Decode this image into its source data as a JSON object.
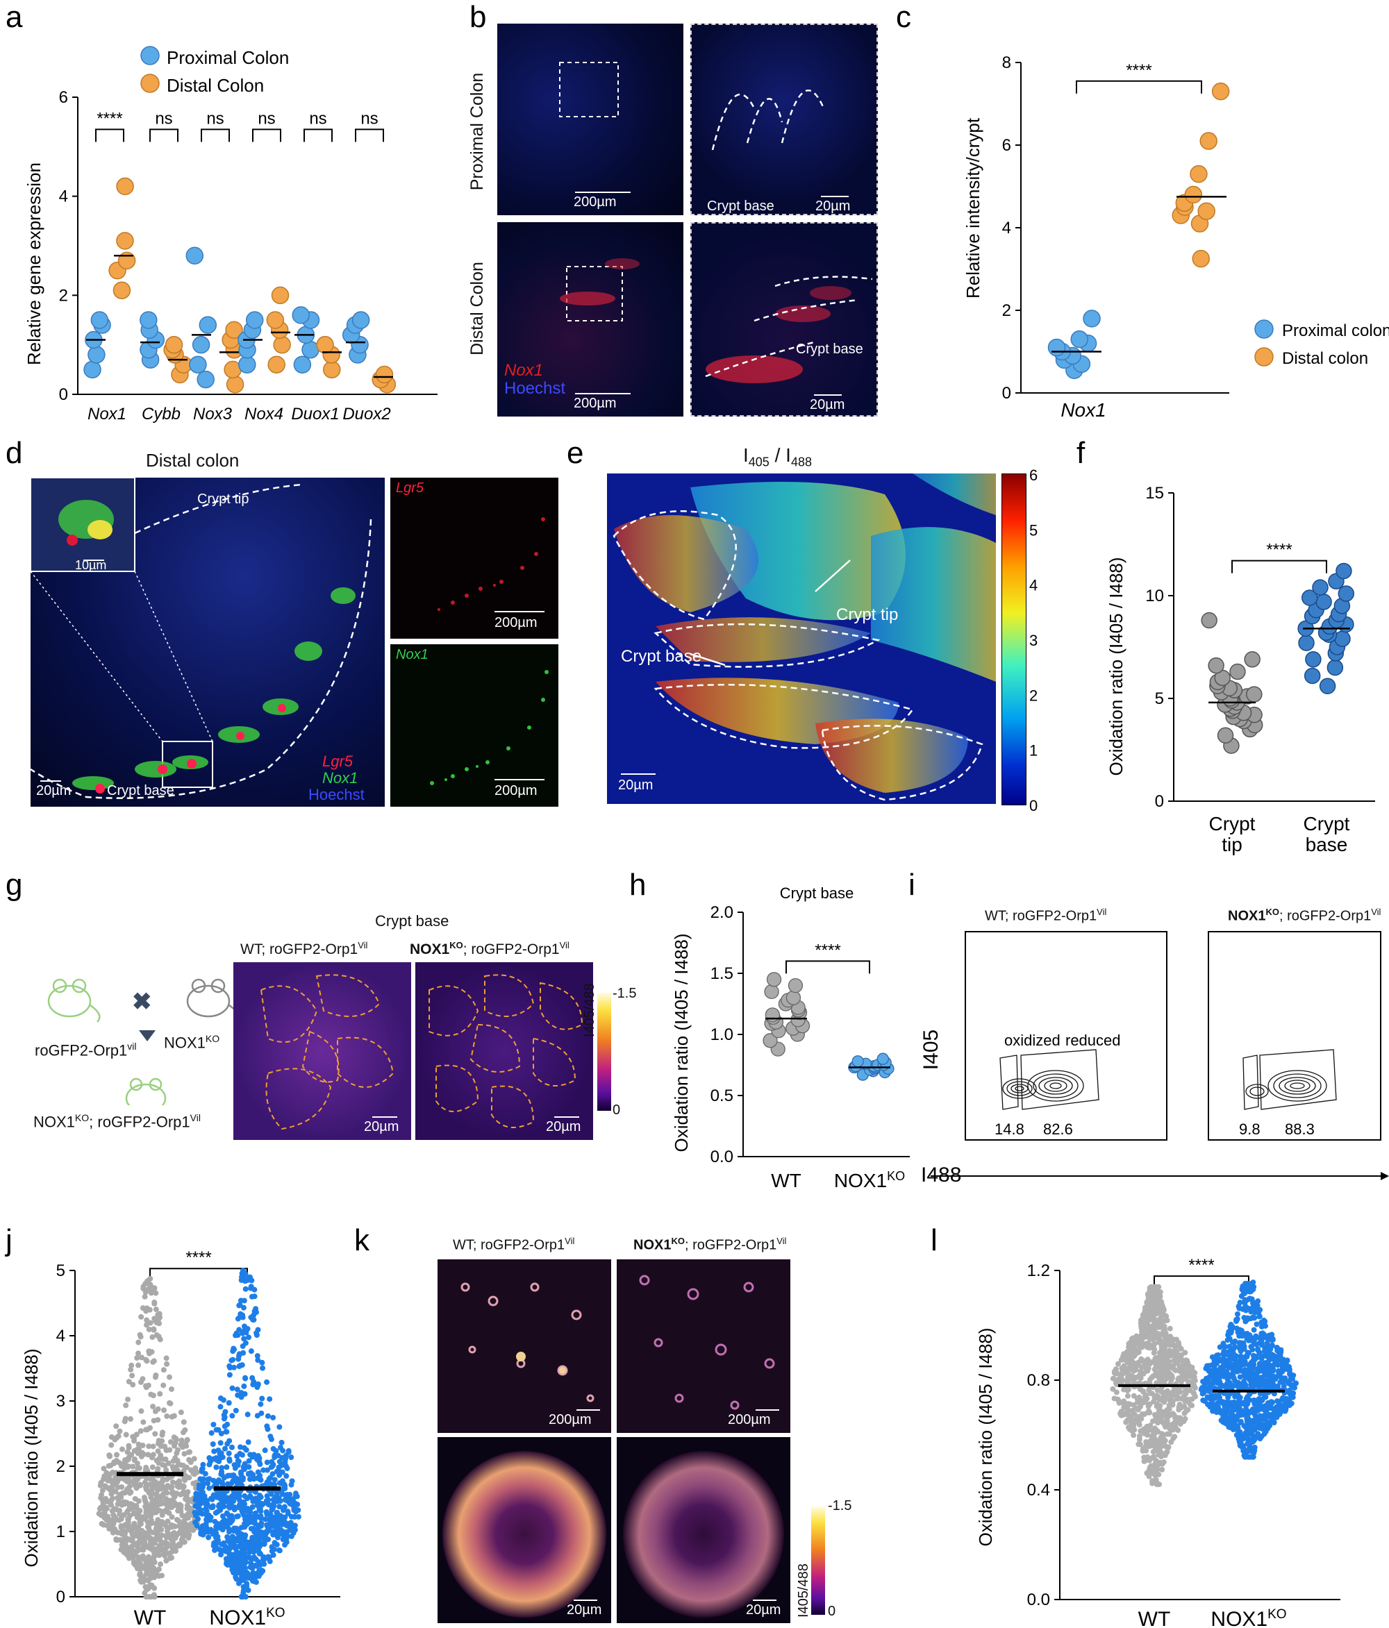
{
  "panels": [
    "a",
    "b",
    "c",
    "d",
    "e",
    "f",
    "g",
    "h",
    "i",
    "j",
    "k",
    "l"
  ],
  "a": {
    "legend": [
      "Proximal Colon",
      "Distal Colon"
    ],
    "colors": {
      "proximal": "#5aaae8",
      "distal": "#f2a44a"
    },
    "ylabel": "Relative gene expression",
    "yticks": [
      "0",
      "2",
      "4",
      "6"
    ],
    "sig": [
      "****",
      "ns",
      "ns",
      "ns",
      "ns",
      "ns"
    ],
    "genes": [
      "Nox1",
      "Cybb",
      "Nox3",
      "Nox4",
      "Duox1",
      "Duox2"
    ]
  },
  "b": {
    "row_labels": [
      "Proximal Colon",
      "Distal Colon"
    ],
    "scale_200": "200µm",
    "scale_20": "20µm",
    "crypt_base": "Crypt base",
    "stain_red": "Nox1",
    "stain_blue": "Hoechst"
  },
  "c": {
    "ylabel": "Relative intensity/crypt",
    "yticks": [
      "0",
      "2",
      "4",
      "6",
      "8"
    ],
    "sig": "****",
    "xlabel": "Nox1",
    "legend": [
      "Proximal colon",
      "Distal colon"
    ]
  },
  "d": {
    "title": "Distal colon",
    "crypt_tip": "Crypt tip",
    "crypt_base": "Crypt base",
    "scale_10": "10µm",
    "scale_20": "20µm",
    "scale_200": "200µm",
    "stains": [
      "Lgr5",
      "Nox1",
      "Hoechst"
    ]
  },
  "e": {
    "title_i": "I",
    "title_sub1": "405",
    "title_sep": " / I",
    "title_sub2": "488",
    "crypt_tip": "Crypt tip",
    "crypt_base": "Crypt base",
    "scale": "20µm",
    "colorbar_ticks": [
      "6",
      "5",
      "4",
      "3",
      "2",
      "1",
      "0"
    ]
  },
  "f": {
    "ylabel": "Oxidation ratio (I405 / I488)",
    "yticks": [
      "0",
      "5",
      "10",
      "15"
    ],
    "sig": "****",
    "categories": [
      "Crypt tip",
      "Crypt base"
    ]
  },
  "g": {
    "mouse1": "roGFP2-Orp1",
    "mouse1_sup": "vil",
    "mouse2": "NOX1",
    "mouse2_sup": "KO",
    "cross_result": "NOX1",
    "cross_result_sup": "KO",
    "cross_result_rest": "; roGFP2-Orp1",
    "cross_result_sup2": "Vil",
    "header": "Crypt base",
    "img1_title": "WT; roGFP2-Orp1",
    "img1_sup": "Vil",
    "img2_title_bold": "NOX1",
    "img2_sup": "KO",
    "img2_rest": "; roGFP2-Orp1",
    "img2_sup2": "Vil",
    "scale": "20µm",
    "cbar_label": "I405/488",
    "cbar_ticks": [
      "-1.5",
      "0"
    ]
  },
  "h": {
    "title": "Crypt base",
    "ylabel": "Oxidation ratio (I405 / I488)",
    "yticks": [
      "0.0",
      "0.5",
      "1.0",
      "1.5",
      "2.0"
    ],
    "sig": "****",
    "categories": [
      "WT",
      "NOX1"
    ],
    "cat2_sup": "KO"
  },
  "i": {
    "plot1_title": "WT; roGFP2-Orp1",
    "plot1_sup": "Vil",
    "plot2_title": "NOX1",
    "plot2_sup": "KO",
    "plot2_rest": "; roGFP2-Orp1",
    "plot2_sup2": "Vil",
    "gate_oxidized": "oxidized",
    "gate_reduced": "reduced",
    "plot1_values": [
      "14.8",
      "82.6"
    ],
    "plot2_values": [
      "9.8",
      "88.3"
    ],
    "ylabel": "I405",
    "xlabel": "I488"
  },
  "j": {
    "ylabel": "Oxidation ratio (I405 / I488)",
    "yticks": [
      "0",
      "1",
      "2",
      "3",
      "4",
      "5"
    ],
    "sig": "****",
    "categories": [
      "WT",
      "NOX1"
    ],
    "cat2_sup": "KO"
  },
  "k": {
    "img1_title": "WT; roGFP2-Orp1",
    "img1_sup": "Vil",
    "img2_title": "NOX1",
    "img2_sup": "KO",
    "img2_rest": "; roGFP2-Orp1",
    "img2_sup2": "Vil",
    "scale_200": "200µm",
    "scale_20": "20µm",
    "cbar_label": "I405/488",
    "cbar_ticks": [
      "-1.5",
      "0"
    ]
  },
  "l": {
    "ylabel": "Oxidation ratio (I405 / I488)",
    "yticks": [
      "0.0",
      "0.4",
      "0.8",
      "1.2"
    ],
    "sig": "****",
    "categories": [
      "WT",
      "NOX1"
    ],
    "cat2_sup": "KO"
  },
  "chart_data": [
    {
      "type": "scatter",
      "panel": "a",
      "categories": [
        "Nox1",
        "Cybb",
        "Nox3",
        "Nox4",
        "Duox1",
        "Duox2"
      ],
      "series": [
        {
          "name": "Proximal Colon",
          "means": [
            1.1,
            1.05,
            1.2,
            1.1,
            1.2,
            1.05
          ],
          "points": [
            [
              0.5,
              0.8,
              1.1,
              1.4,
              1.5
            ],
            [
              0.7,
              0.9,
              1.1,
              1.3,
              1.5
            ],
            [
              0.3,
              0.6,
              1.0,
              1.4,
              2.8
            ],
            [
              0.6,
              0.9,
              1.1,
              1.3,
              1.5
            ],
            [
              0.6,
              0.9,
              1.2,
              1.5,
              1.6
            ],
            [
              0.8,
              1.0,
              1.2,
              1.4,
              1.5
            ]
          ]
        },
        {
          "name": "Distal Colon",
          "means": [
            2.8,
            0.7,
            0.85,
            1.25,
            0.85,
            0.35
          ],
          "points": [
            [
              2.1,
              2.5,
              2.7,
              3.1,
              4.2
            ],
            [
              0.4,
              0.6,
              0.8,
              0.9,
              1.0
            ],
            [
              0.2,
              0.5,
              0.9,
              1.1,
              1.3
            ],
            [
              0.6,
              1.0,
              1.3,
              1.5,
              2.0
            ],
            [
              0.5,
              0.8,
              1.0
            ],
            [
              0.2,
              0.3,
              0.4
            ]
          ]
        }
      ],
      "ylabel": "Relative gene expression",
      "ylim": [
        0,
        6
      ]
    },
    {
      "type": "scatter",
      "panel": "c",
      "categories": [
        "Proximal colon",
        "Distal colon"
      ],
      "means": [
        1.0,
        4.75
      ],
      "points": [
        [
          0.55,
          0.7,
          0.8,
          0.9,
          1.0,
          1.1,
          1.2,
          1.3,
          1.8
        ],
        [
          3.25,
          4.1,
          4.3,
          4.4,
          4.5,
          4.6,
          4.8,
          5.3,
          6.1,
          7.3
        ]
      ],
      "ylabel": "Relative intensity/crypt",
      "xlabel": "Nox1",
      "ylim": [
        0,
        8
      ]
    },
    {
      "type": "scatter",
      "panel": "f",
      "categories": [
        "Crypt tip",
        "Crypt base"
      ],
      "means": [
        4.8,
        8.4
      ],
      "points": [
        [
          2.7,
          3.2,
          3.5,
          3.7,
          3.9,
          4.0,
          4.1,
          4.2,
          4.3,
          4.4,
          4.5,
          4.6,
          4.7,
          4.8,
          4.9,
          5.0,
          5.1,
          5.2,
          5.3,
          5.4,
          5.5,
          5.6,
          5.8,
          6.0,
          6.3,
          6.6,
          6.9,
          8.8
        ],
        [
          5.6,
          6.1,
          6.5,
          6.9,
          7.2,
          7.5,
          7.7,
          7.9,
          8.1,
          8.2,
          8.4,
          8.5,
          8.6,
          8.8,
          9.0,
          9.1,
          9.3,
          9.5,
          9.7,
          9.9,
          10.1,
          10.4,
          10.7,
          11.2
        ]
      ],
      "ylabel": "Oxidation ratio (I405 / I488)",
      "ylim": [
        0,
        15
      ]
    },
    {
      "type": "scatter",
      "panel": "h",
      "categories": [
        "WT",
        "NOX1KO"
      ],
      "means": [
        1.13,
        0.73
      ],
      "points": [
        [
          0.88,
          0.95,
          1.0,
          1.03,
          1.05,
          1.07,
          1.09,
          1.1,
          1.12,
          1.14,
          1.16,
          1.18,
          1.2,
          1.22,
          1.25,
          1.28,
          1.3,
          1.35,
          1.4,
          1.45
        ],
        [
          0.67,
          0.69,
          0.7,
          0.71,
          0.72,
          0.72,
          0.73,
          0.73,
          0.74,
          0.74,
          0.75,
          0.75,
          0.76,
          0.77,
          0.78,
          0.8
        ]
      ],
      "ylabel": "Oxidation ratio (I405 / I488)",
      "ylim": [
        0,
        2.0
      ]
    },
    {
      "type": "scatter",
      "panel": "j",
      "categories": [
        "WT",
        "NOX1KO"
      ],
      "means": [
        1.88,
        1.66
      ],
      "ylabel": "Oxidation ratio (I405 / I488)",
      "ylim": [
        0,
        5
      ]
    },
    {
      "type": "scatter",
      "panel": "l",
      "categories": [
        "WT",
        "NOX1KO"
      ],
      "means": [
        0.78,
        0.76
      ],
      "ylabel": "Oxidation ratio (I405 / I488)",
      "ylim": [
        0,
        1.2
      ]
    }
  ]
}
